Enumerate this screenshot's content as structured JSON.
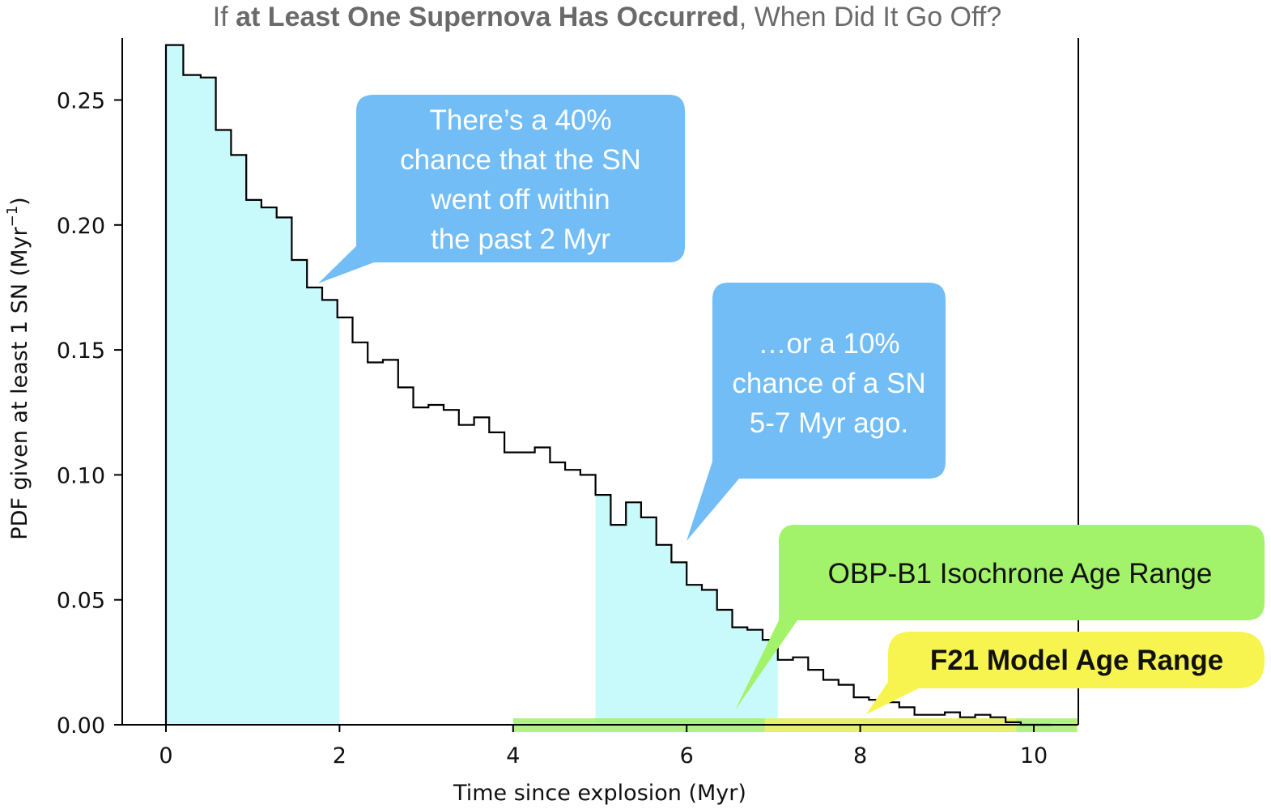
{
  "chart_data": {
    "type": "histogram",
    "title": {
      "pre": "If ",
      "bold": "at Least One Supernova Has Occurred",
      "post": ", When Did It Go Off?"
    },
    "xlabel": "Time since explosion (Myr)",
    "ylabel": "PDF given at least 1 SN (Myr",
    "ylabel_sup": "−1",
    "ylabel_close": ")",
    "xlim": [
      -0.9,
      10.5
    ],
    "ylim": [
      0,
      0.275
    ],
    "xticks": [
      0,
      2,
      4,
      6,
      8,
      10
    ],
    "xtick_labels": [
      "0",
      "2",
      "4",
      "6",
      "8",
      "10"
    ],
    "yticks": [
      0.0,
      0.05,
      0.1,
      0.15,
      0.2,
      0.25
    ],
    "ytick_labels": [
      "0.00",
      "0.05",
      "0.10",
      "0.15",
      "0.20",
      "0.25"
    ],
    "bin_edges": [
      0,
      0.2,
      0.4,
      0.575,
      0.75,
      0.925,
      1.1,
      1.275,
      1.45,
      1.625,
      1.8,
      1.975,
      2.15,
      2.325,
      2.5,
      2.675,
      2.85,
      3.025,
      3.2,
      3.375,
      3.55,
      3.725,
      3.9,
      4.075,
      4.25,
      4.425,
      4.6,
      4.775,
      4.95,
      5.125,
      5.3,
      5.475,
      5.65,
      5.825,
      6.0,
      6.175,
      6.35,
      6.525,
      6.7,
      6.875,
      7.05,
      7.225,
      7.4,
      7.575,
      7.75,
      7.925,
      8.1,
      8.275,
      8.45,
      8.625,
      8.8,
      8.975,
      9.15,
      9.325,
      9.5,
      9.675,
      9.85,
      10.025,
      10.2
    ],
    "values": [
      0.272,
      0.26,
      0.259,
      0.238,
      0.228,
      0.21,
      0.207,
      0.203,
      0.186,
      0.175,
      0.17,
      0.163,
      0.153,
      0.145,
      0.146,
      0.135,
      0.127,
      0.128,
      0.126,
      0.12,
      0.123,
      0.117,
      0.109,
      0.109,
      0.111,
      0.105,
      0.102,
      0.1,
      0.092,
      0.08,
      0.089,
      0.083,
      0.072,
      0.065,
      0.056,
      0.054,
      0.046,
      0.039,
      0.038,
      0.034,
      0.026,
      0.027,
      0.022,
      0.018,
      0.016,
      0.011,
      0.01,
      0.009,
      0.007,
      0.004,
      0.004,
      0.005,
      0.003,
      0.004,
      0.003,
      0.001,
      0.0,
      0.0
    ],
    "shaded_ranges": [
      [
        0,
        2.0
      ],
      [
        4.95,
        7.05
      ]
    ],
    "shade_color": "#c8fafc",
    "line_color": "#000000",
    "age_ranges": [
      {
        "name": "OBP-B1 Isochrone Age Range",
        "x": [
          4.0,
          10.5
        ],
        "color": "#a7ef6a"
      },
      {
        "name": "F21 Model Age Range",
        "x": [
          6.9,
          9.8
        ],
        "color": "#eef06b"
      }
    ],
    "annotations": [
      {
        "text": [
          "There’s a 40%",
          "chance that the SN",
          "went off within",
          "the past 2 Myr"
        ],
        "color": "#72bdf6",
        "text_color": "#ffffff"
      },
      {
        "text": [
          "…or a 10%",
          "chance of a SN",
          "5-7 Myr ago."
        ],
        "color": "#72bdf6",
        "text_color": "#ffffff"
      },
      {
        "text": [
          "OBP-B1 Isochrone Age Range"
        ],
        "color": "#a2f26a",
        "text_color": "#111111"
      },
      {
        "text": [
          "F21 Model Age Range"
        ],
        "color": "#f7f44f",
        "text_color": "#111111"
      }
    ]
  }
}
